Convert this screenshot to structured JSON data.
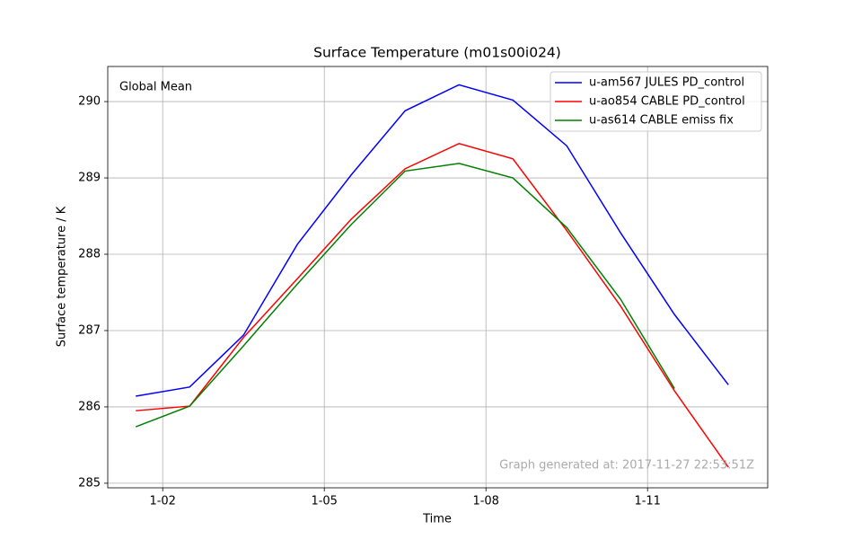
{
  "chart_data": {
    "type": "line",
    "title": "Surface Temperature (m01s00i024)",
    "xlabel": "Time",
    "ylabel": "Surface temperature / K",
    "annotations": [
      "Global Mean",
      "Graph generated at: 2017-11-27 22:53:51Z"
    ],
    "x": [
      1.5,
      2.5,
      3.5,
      4.5,
      5.5,
      6.5,
      7.5,
      8.5,
      9.5,
      10.5,
      11.5,
      12.5
    ],
    "series": [
      {
        "name": "u-am567 JULES PD_control",
        "color": "#0000ff",
        "values": [
          286.14,
          286.26,
          286.94,
          288.13,
          289.04,
          289.88,
          290.22,
          290.02,
          289.42,
          288.28,
          287.21,
          286.29
        ]
      },
      {
        "name": "u-ao854 CABLE PD_control",
        "color": "#ff0000",
        "values": [
          285.95,
          286.01,
          286.91,
          287.68,
          288.46,
          289.12,
          289.45,
          289.25,
          288.31,
          287.32,
          286.21,
          285.21
        ]
      },
      {
        "name": "u-as614 CABLE emiss fix",
        "color": "#008000",
        "values": [
          285.74,
          286.01,
          286.8,
          287.61,
          288.39,
          289.09,
          289.19,
          289.0,
          288.35,
          287.41,
          286.24,
          null
        ]
      }
    ],
    "xlim": [
      0.98,
      13.23
    ],
    "xticks": [
      {
        "value": 2,
        "label": "1-02"
      },
      {
        "value": 5,
        "label": "1-05"
      },
      {
        "value": 8,
        "label": "1-08"
      },
      {
        "value": 11,
        "label": "1-11"
      }
    ],
    "ylim": [
      284.94,
      290.46
    ],
    "yticks": [
      285,
      286,
      287,
      288,
      289,
      290
    ],
    "grid": true,
    "legend": "upper right"
  }
}
